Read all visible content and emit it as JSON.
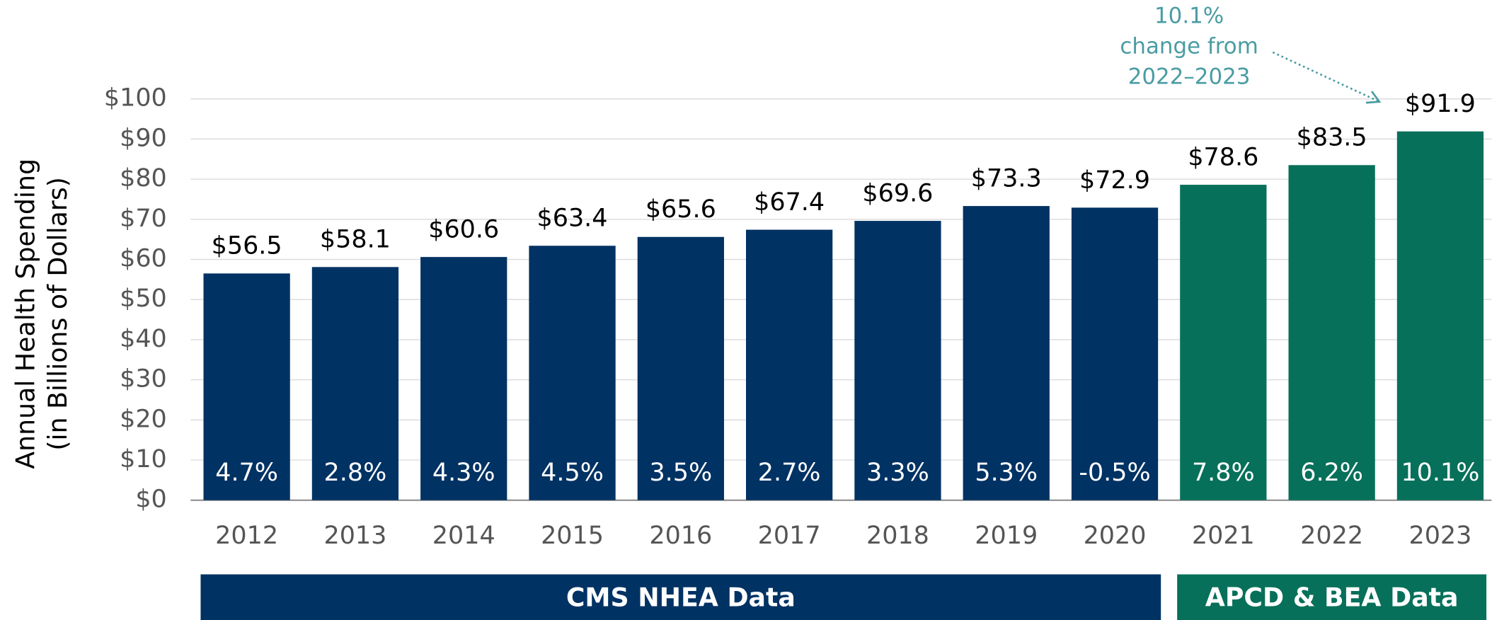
{
  "chart_data": {
    "type": "bar",
    "y_label": [
      "Annual Health Spending",
      "(in Billions of Dollars)"
    ],
    "categories": [
      "2012",
      "2013",
      "2014",
      "2015",
      "2016",
      "2017",
      "2018",
      "2019",
      "2020",
      "2021",
      "2022",
      "2023"
    ],
    "values": [
      56.5,
      58.1,
      60.6,
      63.4,
      65.6,
      67.4,
      69.6,
      73.3,
      72.9,
      78.6,
      83.5,
      91.9
    ],
    "value_labels": [
      "$56.5",
      "$58.1",
      "$60.6",
      "$63.4",
      "$65.6",
      "$67.4",
      "$69.6",
      "$73.3",
      "$72.9",
      "$78.6",
      "$83.5",
      "$91.9"
    ],
    "changes": [
      4.7,
      2.8,
      4.3,
      4.5,
      3.5,
      2.7,
      3.3,
      5.3,
      -0.5,
      7.8,
      6.2,
      10.1
    ],
    "change_labels": [
      "4.7%",
      "2.8%",
      "4.3%",
      "4.5%",
      "3.5%",
      "2.7%",
      "3.3%",
      "5.3%",
      "-0.5%",
      "7.8%",
      "6.2%",
      "10.1%"
    ],
    "colors": [
      "#003263",
      "#003263",
      "#003263",
      "#003263",
      "#003263",
      "#003263",
      "#003263",
      "#003263",
      "#003263",
      "#07705a",
      "#07705a",
      "#07705a"
    ],
    "groups": [
      {
        "name": "CMS NHEA Data",
        "first": 0,
        "last": 8,
        "color": "#003263"
      },
      {
        "name": "APCD & BEA Data",
        "first": 9,
        "last": 11,
        "color": "#07705a"
      }
    ],
    "ylim": [
      0,
      100
    ],
    "yticks": [
      {
        "value": 0,
        "label": "$0"
      },
      {
        "value": 10,
        "label": "$10"
      },
      {
        "value": 20,
        "label": "$20"
      },
      {
        "value": 30,
        "label": "$30"
      },
      {
        "value": 40,
        "label": "$40"
      },
      {
        "value": 50,
        "label": "$50"
      },
      {
        "value": 60,
        "label": "$60"
      },
      {
        "value": 70,
        "label": "$70"
      },
      {
        "value": 80,
        "label": "$80"
      },
      {
        "value": 90,
        "label": "$90"
      },
      {
        "value": 100,
        "label": "$100"
      }
    ],
    "grid": true,
    "annotation": {
      "lines": [
        "10.1%",
        "change from",
        "2022–2023"
      ],
      "color": "#4a9ca3"
    }
  }
}
